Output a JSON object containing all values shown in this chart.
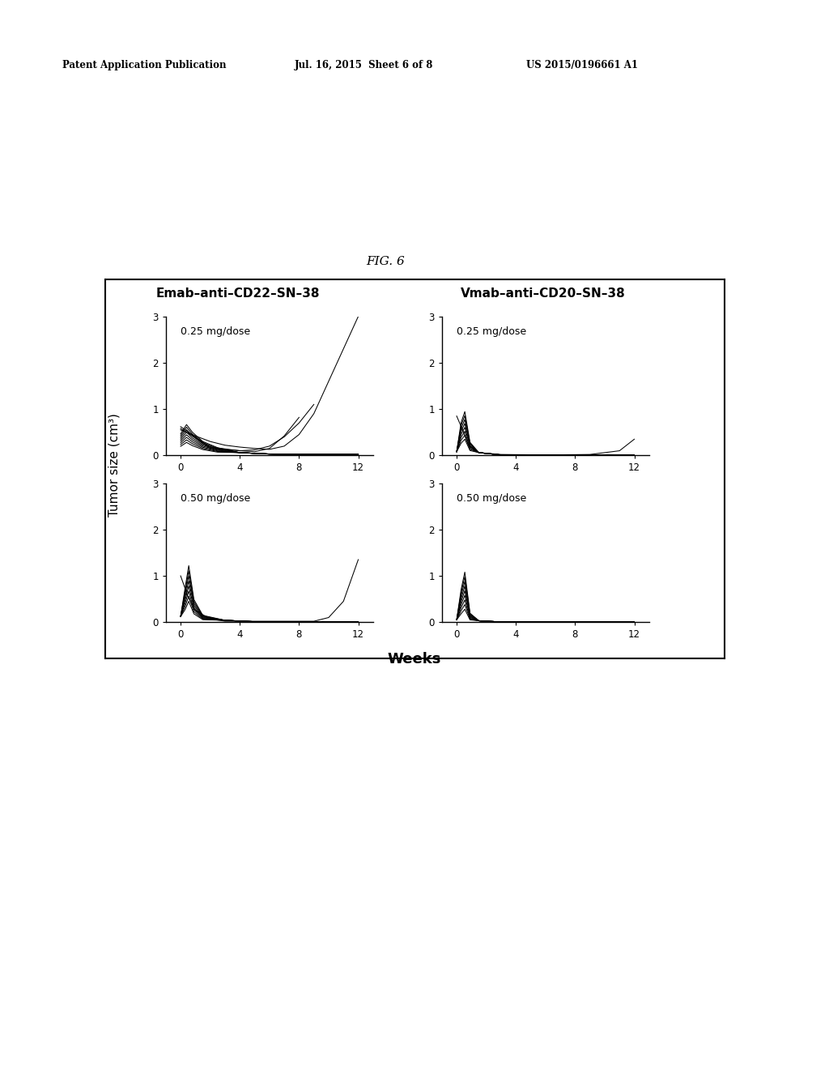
{
  "fig_label": "FIG. 6",
  "header_left": "Patent Application Publication",
  "header_mid": "Jul. 16, 2015  Sheet 6 of 8",
  "header_right": "US 2015/0196661 A1",
  "panel_title_left": "Emab–anti–CD22–SN–38",
  "panel_title_right": "Vmab–anti–CD20–SN–38",
  "dose_tl": "0.25 mg/dose",
  "dose_tr": "0.25 mg/dose",
  "dose_bl": "0.50 mg/dose",
  "dose_br": "0.50 mg/dose",
  "ylabel": "Tumor size (cm³)",
  "xlabel": "Weeks",
  "xlim": [
    -1,
    13
  ],
  "ylim": [
    0,
    3
  ],
  "xticks": [
    0,
    4,
    8,
    12
  ],
  "yticks": [
    0,
    1,
    2,
    3
  ],
  "bg_color": "#ffffff",
  "line_color": "#000000"
}
